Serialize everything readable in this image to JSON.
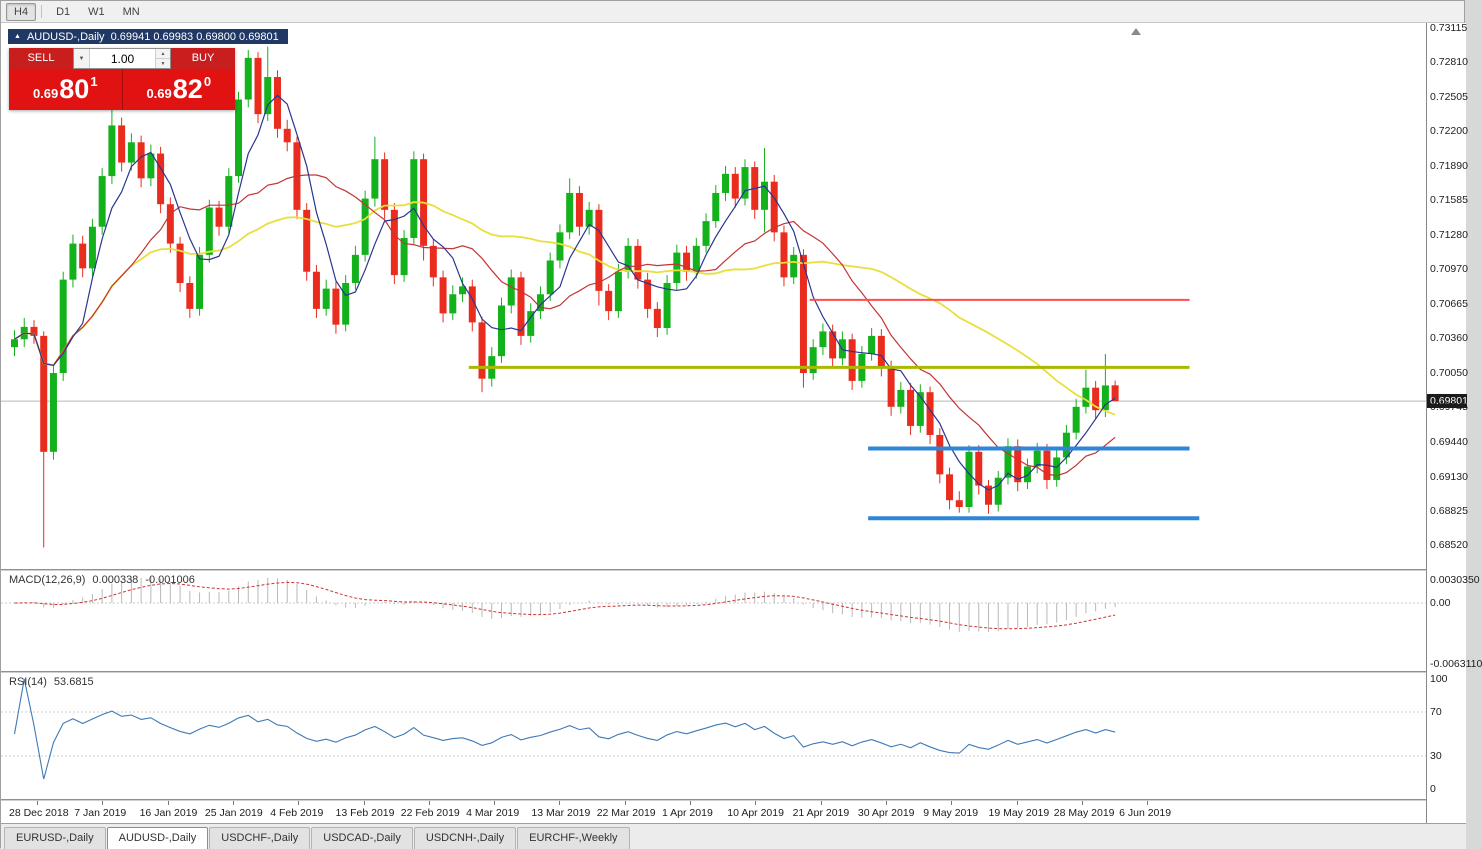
{
  "toolbar": {
    "timeframes": [
      {
        "label": "H4",
        "active": true
      },
      {
        "label": "D1",
        "active": false
      },
      {
        "label": "W1",
        "active": false
      },
      {
        "label": "MN",
        "active": false
      }
    ]
  },
  "chart_header": {
    "symbol_title": "AUDUSD-,Daily",
    "ohlc": "0.69941 0.69983 0.69800 0.69801"
  },
  "icons": {
    "collapse": "▲",
    "volume_caret": "▼",
    "spin_up": "▲",
    "spin_down": "▼"
  },
  "one_click": {
    "sell_label": "SELL",
    "buy_label": "BUY",
    "volume": "1.00",
    "sell_price_prefix": "0.69",
    "sell_price_big": "80",
    "sell_price_sup": "1",
    "buy_price_prefix": "0.69",
    "buy_price_big": "82",
    "buy_price_sup": "0"
  },
  "chart_data": {
    "type": "candlestick",
    "symbol": "AUDUSD",
    "timeframe": "Daily",
    "bid": "0.69801",
    "up_color": "#13b11c",
    "down_color": "#ea2c1e",
    "price_ticks": [
      "0.73115",
      "0.72810",
      "0.72505",
      "0.72200",
      "0.71890",
      "0.71585",
      "0.71280",
      "0.70970",
      "0.70665",
      "0.70360",
      "0.70050",
      "0.69745",
      "0.69440",
      "0.69130",
      "0.68825",
      "0.68520"
    ],
    "date_labels": [
      "28 Dec 2018",
      "7 Jan 2019",
      "16 Jan 2019",
      "25 Jan 2019",
      "4 Feb 2019",
      "13 Feb 2019",
      "22 Feb 2019",
      "4 Mar 2019",
      "13 Mar 2019",
      "22 Mar 2019",
      "1 Apr 2019",
      "10 Apr 2019",
      "21 Apr 2019",
      "30 Apr 2019",
      "9 May 2019",
      "19 May 2019",
      "28 May 2019",
      "6 Jun 2019"
    ],
    "ohlc": [
      [
        0.7028,
        0.7043,
        0.702,
        0.7035
      ],
      [
        0.7035,
        0.7054,
        0.7028,
        0.7046
      ],
      [
        0.7046,
        0.7052,
        0.7031,
        0.7038
      ],
      [
        0.7038,
        0.7042,
        0.685,
        0.6935
      ],
      [
        0.6935,
        0.7013,
        0.6928,
        0.7005
      ],
      [
        0.7005,
        0.7095,
        0.6998,
        0.7088
      ],
      [
        0.7088,
        0.7128,
        0.7081,
        0.712
      ],
      [
        0.712,
        0.7127,
        0.709,
        0.7098
      ],
      [
        0.7098,
        0.7142,
        0.7091,
        0.7135
      ],
      [
        0.7135,
        0.7187,
        0.7128,
        0.718
      ],
      [
        0.718,
        0.7248,
        0.7173,
        0.7225
      ],
      [
        0.7225,
        0.7232,
        0.7184,
        0.7192
      ],
      [
        0.7192,
        0.7218,
        0.7185,
        0.721
      ],
      [
        0.721,
        0.7216,
        0.717,
        0.7178
      ],
      [
        0.7178,
        0.7208,
        0.7171,
        0.72
      ],
      [
        0.72,
        0.7206,
        0.7147,
        0.7155
      ],
      [
        0.7155,
        0.7161,
        0.7112,
        0.712
      ],
      [
        0.712,
        0.7126,
        0.7077,
        0.7085
      ],
      [
        0.7085,
        0.7091,
        0.7054,
        0.7062
      ],
      [
        0.7062,
        0.7117,
        0.7056,
        0.711
      ],
      [
        0.711,
        0.7159,
        0.7103,
        0.7152
      ],
      [
        0.7152,
        0.7158,
        0.7127,
        0.7135
      ],
      [
        0.7135,
        0.7187,
        0.7129,
        0.718
      ],
      [
        0.718,
        0.7255,
        0.7174,
        0.7248
      ],
      [
        0.7248,
        0.7292,
        0.7241,
        0.7285
      ],
      [
        0.7285,
        0.729,
        0.7227,
        0.7235
      ],
      [
        0.7235,
        0.7295,
        0.7229,
        0.7268
      ],
      [
        0.7268,
        0.7274,
        0.7214,
        0.7222
      ],
      [
        0.7222,
        0.723,
        0.7202,
        0.721
      ],
      [
        0.721,
        0.7215,
        0.7142,
        0.715
      ],
      [
        0.715,
        0.7156,
        0.7087,
        0.7095
      ],
      [
        0.7095,
        0.7101,
        0.7054,
        0.7062
      ],
      [
        0.7062,
        0.7088,
        0.7056,
        0.708
      ],
      [
        0.708,
        0.7086,
        0.704,
        0.7048
      ],
      [
        0.7048,
        0.7092,
        0.7042,
        0.7085
      ],
      [
        0.7085,
        0.7118,
        0.7079,
        0.711
      ],
      [
        0.711,
        0.7167,
        0.7104,
        0.716
      ],
      [
        0.716,
        0.7215,
        0.7153,
        0.7195
      ],
      [
        0.7195,
        0.7201,
        0.7142,
        0.715
      ],
      [
        0.715,
        0.7156,
        0.7084,
        0.7092
      ],
      [
        0.7092,
        0.7132,
        0.7086,
        0.7125
      ],
      [
        0.7125,
        0.7202,
        0.7119,
        0.7195
      ],
      [
        0.7195,
        0.72,
        0.7105,
        0.7118
      ],
      [
        0.7118,
        0.7124,
        0.7082,
        0.709
      ],
      [
        0.709,
        0.7096,
        0.705,
        0.7058
      ],
      [
        0.7058,
        0.7083,
        0.7052,
        0.7075
      ],
      [
        0.7075,
        0.709,
        0.7068,
        0.7082
      ],
      [
        0.7082,
        0.7088,
        0.7042,
        0.705
      ],
      [
        0.705,
        0.7055,
        0.6988,
        0.7
      ],
      [
        0.7,
        0.7028,
        0.6993,
        0.702
      ],
      [
        0.702,
        0.7072,
        0.7014,
        0.7065
      ],
      [
        0.7065,
        0.7097,
        0.7058,
        0.709
      ],
      [
        0.709,
        0.7095,
        0.703,
        0.7038
      ],
      [
        0.7038,
        0.7067,
        0.7032,
        0.706
      ],
      [
        0.706,
        0.7082,
        0.7053,
        0.7075
      ],
      [
        0.7075,
        0.7112,
        0.7069,
        0.7105
      ],
      [
        0.7105,
        0.7137,
        0.7098,
        0.713
      ],
      [
        0.713,
        0.7178,
        0.7124,
        0.7165
      ],
      [
        0.7165,
        0.7171,
        0.7127,
        0.7135
      ],
      [
        0.7135,
        0.7157,
        0.7128,
        0.715
      ],
      [
        0.715,
        0.7155,
        0.7065,
        0.7078
      ],
      [
        0.7078,
        0.7084,
        0.7052,
        0.706
      ],
      [
        0.706,
        0.7102,
        0.7054,
        0.7095
      ],
      [
        0.7095,
        0.7125,
        0.7089,
        0.7118
      ],
      [
        0.7118,
        0.7124,
        0.708,
        0.7088
      ],
      [
        0.7088,
        0.7094,
        0.7054,
        0.7062
      ],
      [
        0.7062,
        0.7068,
        0.7037,
        0.7045
      ],
      [
        0.7045,
        0.7092,
        0.7039,
        0.7085
      ],
      [
        0.7085,
        0.7119,
        0.7079,
        0.7112
      ],
      [
        0.7112,
        0.7118,
        0.7087,
        0.7095
      ],
      [
        0.7095,
        0.7125,
        0.7089,
        0.7118
      ],
      [
        0.7118,
        0.7147,
        0.7112,
        0.714
      ],
      [
        0.714,
        0.7172,
        0.7134,
        0.7165
      ],
      [
        0.7165,
        0.7189,
        0.7158,
        0.7182
      ],
      [
        0.7182,
        0.7188,
        0.7152,
        0.716
      ],
      [
        0.716,
        0.7195,
        0.7154,
        0.7188
      ],
      [
        0.7188,
        0.7193,
        0.7142,
        0.715
      ],
      [
        0.715,
        0.7205,
        0.713,
        0.7175
      ],
      [
        0.7175,
        0.7181,
        0.7122,
        0.713
      ],
      [
        0.713,
        0.7136,
        0.7082,
        0.709
      ],
      [
        0.709,
        0.7117,
        0.7084,
        0.711
      ],
      [
        0.711,
        0.7115,
        0.6992,
        0.7005
      ],
      [
        0.7005,
        0.7035,
        0.6999,
        0.7028
      ],
      [
        0.7028,
        0.7049,
        0.7021,
        0.7042
      ],
      [
        0.7042,
        0.7048,
        0.701,
        0.7018
      ],
      [
        0.7018,
        0.7042,
        0.7012,
        0.7035
      ],
      [
        0.7035,
        0.704,
        0.699,
        0.6998
      ],
      [
        0.6998,
        0.7029,
        0.6992,
        0.7022
      ],
      [
        0.7022,
        0.7045,
        0.7016,
        0.7038
      ],
      [
        0.7038,
        0.7044,
        0.7002,
        0.701
      ],
      [
        0.701,
        0.7016,
        0.6967,
        0.6975
      ],
      [
        0.6975,
        0.6997,
        0.6969,
        0.699
      ],
      [
        0.699,
        0.6996,
        0.695,
        0.6958
      ],
      [
        0.6958,
        0.6995,
        0.6952,
        0.6988
      ],
      [
        0.6988,
        0.6993,
        0.6942,
        0.695
      ],
      [
        0.695,
        0.6956,
        0.6907,
        0.6915
      ],
      [
        0.6915,
        0.6921,
        0.6884,
        0.6892
      ],
      [
        0.6892,
        0.69,
        0.6881,
        0.6886
      ],
      [
        0.6886,
        0.6941,
        0.6881,
        0.6935
      ],
      [
        0.6935,
        0.6941,
        0.6897,
        0.6905
      ],
      [
        0.6905,
        0.691,
        0.688,
        0.6888
      ],
      [
        0.6888,
        0.6918,
        0.6882,
        0.6912
      ],
      [
        0.6912,
        0.6947,
        0.6906,
        0.694
      ],
      [
        0.694,
        0.6946,
        0.69,
        0.6908
      ],
      [
        0.6908,
        0.6929,
        0.6902,
        0.6922
      ],
      [
        0.6922,
        0.6943,
        0.6916,
        0.6936
      ],
      [
        0.6936,
        0.6942,
        0.6902,
        0.691
      ],
      [
        0.691,
        0.6937,
        0.6904,
        0.693
      ],
      [
        0.693,
        0.6959,
        0.6924,
        0.6952
      ],
      [
        0.6952,
        0.6982,
        0.6946,
        0.6975
      ],
      [
        0.6975,
        0.7008,
        0.6969,
        0.6992
      ],
      [
        0.6992,
        0.6998,
        0.6964,
        0.6972
      ],
      [
        0.6972,
        0.7022,
        0.6966,
        0.6994
      ],
      [
        0.69941,
        0.69983,
        0.698,
        0.69801
      ]
    ],
    "moving_averages": [
      {
        "name": "ma-slow-yellow",
        "period": 34,
        "color": "#e9df3c",
        "width": 1.8
      },
      {
        "name": "ma-mid-red",
        "period": 13,
        "color": "#c53434",
        "width": 1.2
      },
      {
        "name": "ma-fast-navy",
        "period": 5,
        "color": "#2a3590",
        "width": 1.2
      }
    ],
    "hlines": [
      {
        "name": "resistance-line-red",
        "price": 0.707,
        "from": 82,
        "to": 121,
        "color": "#fe4e4e",
        "width": 2
      },
      {
        "name": "pivot-line-olive",
        "price": 0.701,
        "from": 47,
        "to": 121,
        "color": "#a9b800",
        "width": 3
      },
      {
        "name": "support-line-blue-upper",
        "price": 0.6938,
        "from": 88,
        "to": 121,
        "color": "#2e86d8",
        "width": 4
      },
      {
        "name": "support-line-blue-lower",
        "price": 0.6876,
        "from": 88,
        "to": 122,
        "color": "#2e86d8",
        "width": 4
      }
    ],
    "macd": {
      "title": "MACD(12,26,9)",
      "main_value": "0.000338",
      "signal_value": "-0.001006",
      "fast": 12,
      "slow": 26,
      "signal_period": 9,
      "main_color": "#b8b8b8",
      "signal_color": "#cc3333",
      "scale_labels": [
        "0.0030350",
        "0.00",
        "-0.0063110"
      ]
    },
    "rsi": {
      "title": "RSI(14)",
      "value": "53.6815",
      "period": 14,
      "color": "#3e7ab5",
      "level_lines": [
        70,
        30
      ],
      "scale_labels": [
        "100",
        "70",
        "30",
        "0"
      ]
    }
  },
  "bottom_tabs": [
    {
      "label": "EURUSD-,Daily",
      "active": false
    },
    {
      "label": "AUDUSD-,Daily",
      "active": true
    },
    {
      "label": "USDCHF-,Daily",
      "active": false
    },
    {
      "label": "USDCAD-,Daily",
      "active": false
    },
    {
      "label": "USDCNH-,Daily",
      "active": false
    },
    {
      "label": "EURCHF-,Weekly",
      "active": false
    }
  ]
}
